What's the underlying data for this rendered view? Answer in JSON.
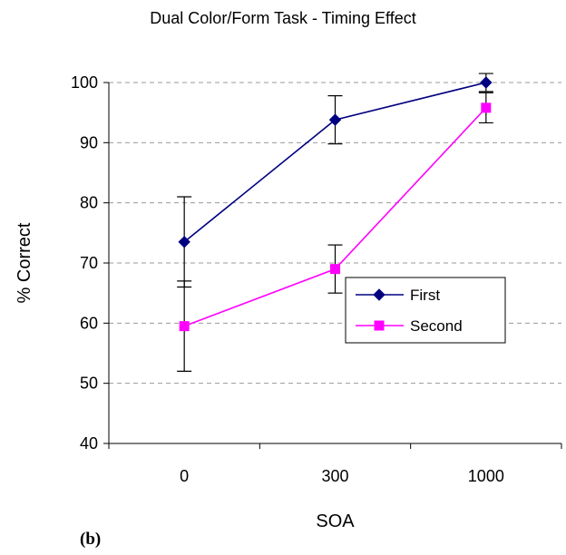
{
  "chart_data": {
    "type": "line",
    "title": "Dual Color/Form Task - Timing Effect",
    "xlabel": "SOA",
    "ylabel": "% Correct",
    "categories": [
      "0",
      "300",
      "1000"
    ],
    "ylim": [
      40,
      100
    ],
    "yticks": [
      40,
      50,
      60,
      70,
      80,
      90,
      100
    ],
    "grid": "horizontal dashed",
    "legend_position": "right",
    "series": [
      {
        "name": "First",
        "color": "#000080",
        "marker": "diamond",
        "values": [
          73.5,
          93.8,
          100
        ],
        "error": [
          7.5,
          4.0,
          1.5
        ]
      },
      {
        "name": "Second",
        "color": "#ff00ff",
        "marker": "square",
        "values": [
          59.5,
          69.0,
          95.8
        ],
        "error": [
          7.5,
          4.0,
          2.5
        ]
      }
    ]
  },
  "panel_label": "(b)"
}
